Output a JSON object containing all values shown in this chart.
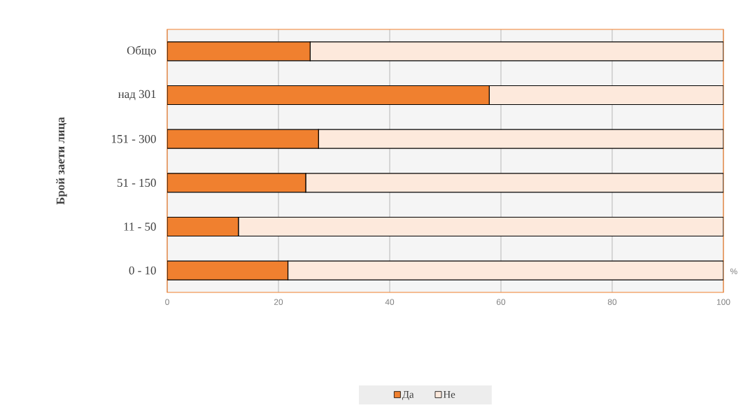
{
  "chart_data": {
    "type": "bar",
    "orientation": "horizontal",
    "stacked": true,
    "ylabel": "Брой заети лица",
    "xlabel": "%",
    "categories": [
      "Общо",
      "над 301",
      "151 - 300",
      "51 - 150",
      "11 - 50",
      "0 - 10"
    ],
    "series": [
      {
        "name": "Да",
        "color": "#f0802f",
        "values": [
          25.7,
          57.9,
          27.2,
          24.9,
          12.8,
          21.7
        ]
      },
      {
        "name": "Не",
        "color": "#fde9dc",
        "values": [
          74.3,
          42.1,
          72.8,
          75.1,
          87.2,
          78.3
        ]
      }
    ],
    "xlim": [
      0,
      100
    ],
    "xticks": [
      0,
      20,
      40,
      60,
      80,
      100
    ],
    "grid": "x",
    "legend": "bottom"
  }
}
